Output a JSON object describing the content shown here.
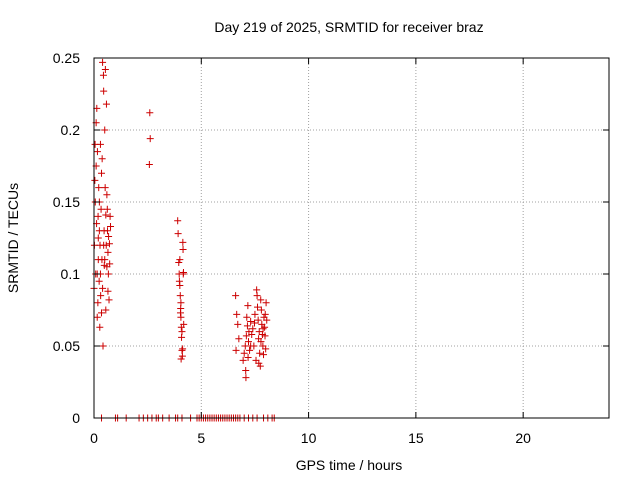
{
  "chart_data": {
    "type": "scatter",
    "title": "Day 219 of 2025, SRMTID for receiver braz",
    "xlabel": "GPS time / hours",
    "ylabel": "SRMTID / TECUs",
    "xlim": [
      0,
      24
    ],
    "ylim": [
      0,
      0.25
    ],
    "xticks": [
      0,
      5,
      10,
      15,
      20
    ],
    "xtick_labels": [
      "0",
      "5",
      "10",
      "15",
      "20"
    ],
    "yticks": [
      0,
      0.05,
      0.1,
      0.15,
      0.2,
      0.25
    ],
    "ytick_labels": [
      "0",
      "0.05",
      "0.1",
      "0.15",
      "0.2",
      "0.25"
    ],
    "grid": true,
    "marker": "+",
    "colors": {
      "series": "#cc0000",
      "grid": "#a0a0a0",
      "axis": "#000000"
    },
    "series": [
      {
        "name": "SRMTID",
        "points": [
          [
            0.0,
            0.09
          ],
          [
            0.02,
            0.12
          ],
          [
            0.04,
            0.165
          ],
          [
            0.05,
            0.19
          ],
          [
            0.06,
            0.15
          ],
          [
            0.08,
            0.1
          ],
          [
            0.1,
            0.205
          ],
          [
            0.1,
            0.175
          ],
          [
            0.12,
            0.135
          ],
          [
            0.13,
            0.215
          ],
          [
            0.15,
            0.07
          ],
          [
            0.16,
            0.185
          ],
          [
            0.18,
            0.08
          ],
          [
            0.19,
            0.14
          ],
          [
            0.2,
            0.11
          ],
          [
            0.22,
            0.16
          ],
          [
            0.24,
            0.095
          ],
          [
            0.25,
            0.13
          ],
          [
            0.27,
            0.063
          ],
          [
            0.28,
            0.12
          ],
          [
            0.3,
            0.1
          ],
          [
            0.31,
            0.085
          ],
          [
            0.33,
            0.145
          ],
          [
            0.35,
            0.073
          ],
          [
            0.37,
            0.11
          ],
          [
            0.38,
            0.18
          ],
          [
            0.4,
            0.247
          ],
          [
            0.42,
            0.05
          ],
          [
            0.44,
            0.238
          ],
          [
            0.45,
            0.227
          ],
          [
            0.47,
            0.13
          ],
          [
            0.48,
            0.106
          ],
          [
            0.5,
            0.2
          ],
          [
            0.52,
            0.16
          ],
          [
            0.53,
            0.242
          ],
          [
            0.55,
            0.141
          ],
          [
            0.57,
            0.12
          ],
          [
            0.58,
            0.218
          ],
          [
            0.6,
            0.155
          ],
          [
            0.62,
            0.145
          ],
          [
            0.63,
            0.13
          ],
          [
            0.65,
            0.115
          ],
          [
            0.67,
            0.1
          ],
          [
            0.68,
            0.126
          ],
          [
            0.7,
            0.082
          ],
          [
            0.72,
            0.121
          ],
          [
            0.73,
            0.107
          ],
          [
            0.75,
            0.14
          ],
          [
            0.77,
            0.133
          ],
          [
            0.3,
            0.19
          ],
          [
            0.35,
            0.17
          ],
          [
            0.45,
            0.12
          ],
          [
            0.55,
            0.075
          ],
          [
            0.65,
            0.088
          ],
          [
            0.2,
            0.125
          ],
          [
            0.15,
            0.1
          ],
          [
            0.4,
            0.09
          ],
          [
            0.5,
            0.11
          ],
          [
            0.6,
            0.105
          ],
          [
            0.25,
            0.15
          ],
          [
            2.6,
            0.212
          ],
          [
            2.62,
            0.194
          ],
          [
            2.58,
            0.176
          ],
          [
            3.9,
            0.137
          ],
          [
            3.92,
            0.128
          ],
          [
            3.95,
            0.108
          ],
          [
            3.97,
            0.1
          ],
          [
            4.0,
            0.092
          ],
          [
            4.02,
            0.085
          ],
          [
            4.04,
            0.076
          ],
          [
            4.05,
            0.07
          ],
          [
            4.07,
            0.063
          ],
          [
            4.08,
            0.056
          ],
          [
            4.1,
            0.047
          ],
          [
            4.12,
            0.043
          ],
          [
            4.14,
            0.122
          ],
          [
            4.15,
            0.117
          ],
          [
            4.17,
            0.101
          ],
          [
            4.18,
            0.065
          ],
          [
            4.0,
            0.11
          ],
          [
            4.05,
            0.08
          ],
          [
            4.1,
            0.06
          ],
          [
            3.98,
            0.095
          ],
          [
            4.13,
            0.048
          ],
          [
            4.03,
            0.073
          ],
          [
            4.16,
            0.1
          ],
          [
            4.06,
            0.041
          ],
          [
            6.6,
            0.085
          ],
          [
            6.65,
            0.072
          ],
          [
            6.7,
            0.065
          ],
          [
            6.62,
            0.047
          ],
          [
            6.75,
            0.055
          ],
          [
            6.95,
            0.04
          ],
          [
            7.0,
            0.045
          ],
          [
            7.05,
            0.05
          ],
          [
            7.07,
            0.033
          ],
          [
            7.1,
            0.057
          ],
          [
            7.12,
            0.07
          ],
          [
            7.15,
            0.064
          ],
          [
            7.17,
            0.078
          ],
          [
            7.2,
            0.053
          ],
          [
            7.22,
            0.06
          ],
          [
            7.25,
            0.047
          ],
          [
            7.3,
            0.067
          ],
          [
            7.35,
            0.058
          ],
          [
            7.4,
            0.062
          ],
          [
            7.45,
            0.05
          ],
          [
            7.5,
            0.072
          ],
          [
            7.55,
            0.04
          ],
          [
            7.6,
            0.085
          ],
          [
            7.62,
            0.077
          ],
          [
            7.65,
            0.068
          ],
          [
            7.67,
            0.055
          ],
          [
            7.7,
            0.06
          ],
          [
            7.72,
            0.045
          ],
          [
            7.75,
            0.036
          ],
          [
            7.77,
            0.082
          ],
          [
            7.8,
            0.075
          ],
          [
            7.82,
            0.065
          ],
          [
            7.85,
            0.058
          ],
          [
            7.87,
            0.05
          ],
          [
            7.9,
            0.044
          ],
          [
            7.92,
            0.07
          ],
          [
            7.95,
            0.063
          ],
          [
            7.97,
            0.057
          ],
          [
            8.0,
            0.048
          ],
          [
            8.02,
            0.08
          ],
          [
            8.05,
            0.068
          ],
          [
            7.08,
            0.028
          ],
          [
            7.58,
            0.089
          ],
          [
            7.68,
            0.038
          ],
          [
            7.88,
            0.062
          ],
          [
            7.3,
            0.05
          ],
          [
            7.78,
            0.053
          ],
          [
            7.98,
            0.072
          ],
          [
            7.18,
            0.042
          ],
          [
            7.48,
            0.066
          ],
          [
            0.35,
            0.0
          ],
          [
            1.0,
            0.0
          ],
          [
            1.1,
            0.0
          ],
          [
            1.5,
            0.0
          ],
          [
            2.1,
            0.0
          ],
          [
            2.3,
            0.0
          ],
          [
            2.5,
            0.0
          ],
          [
            2.7,
            0.0
          ],
          [
            2.9,
            0.0
          ],
          [
            3.0,
            0.0
          ],
          [
            3.2,
            0.0
          ],
          [
            3.5,
            0.0
          ],
          [
            3.8,
            0.0
          ],
          [
            3.9,
            0.0
          ],
          [
            4.1,
            0.0
          ],
          [
            4.5,
            0.0
          ],
          [
            4.8,
            0.0
          ],
          [
            4.9,
            0.0
          ],
          [
            5.0,
            0.0
          ],
          [
            5.1,
            0.0
          ],
          [
            5.2,
            0.0
          ],
          [
            5.3,
            0.0
          ],
          [
            5.4,
            0.0
          ],
          [
            5.5,
            0.0
          ],
          [
            5.6,
            0.0
          ],
          [
            5.7,
            0.0
          ],
          [
            5.8,
            0.0
          ],
          [
            5.9,
            0.0
          ],
          [
            6.0,
            0.0
          ],
          [
            6.1,
            0.0
          ],
          [
            6.2,
            0.0
          ],
          [
            6.3,
            0.0
          ],
          [
            6.4,
            0.0
          ],
          [
            6.5,
            0.0
          ],
          [
            6.6,
            0.0
          ],
          [
            6.7,
            0.0
          ],
          [
            6.8,
            0.0
          ],
          [
            7.0,
            0.0
          ],
          [
            7.2,
            0.0
          ],
          [
            7.4,
            0.0
          ],
          [
            7.6,
            0.0
          ],
          [
            7.9,
            0.0
          ],
          [
            8.1,
            0.0
          ],
          [
            8.3,
            0.0
          ],
          [
            8.4,
            0.0
          ]
        ]
      }
    ]
  }
}
